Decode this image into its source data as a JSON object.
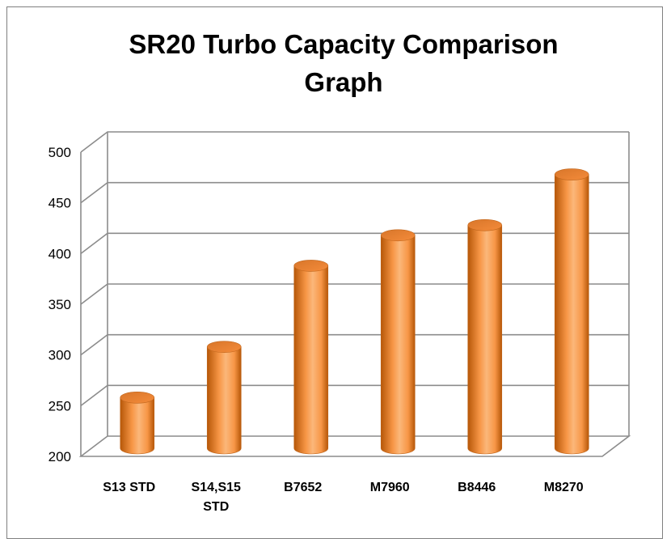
{
  "chart_data": {
    "type": "bar",
    "style": "3d-cylinder",
    "title_lines": [
      "SR20 Turbo Capacity Comparison",
      "Graph"
    ],
    "categories": [
      [
        "S13 STD"
      ],
      [
        "S14,S15",
        "STD"
      ],
      [
        "B7652"
      ],
      [
        "M7960"
      ],
      [
        "B8446"
      ],
      [
        "M8270"
      ]
    ],
    "series": [
      {
        "values": [
          250,
          300,
          380,
          410,
          420,
          470
        ]
      }
    ],
    "ylim": [
      200,
      500
    ],
    "yticks": [
      "200",
      "250",
      "300",
      "350",
      "400",
      "450",
      "500"
    ],
    "grid": true,
    "legend": "none",
    "colors": {
      "bar": "#f79646",
      "bar_dark": "#b65708",
      "bar_light": "#fbb77a",
      "grid": "#8c8c8c"
    }
  }
}
